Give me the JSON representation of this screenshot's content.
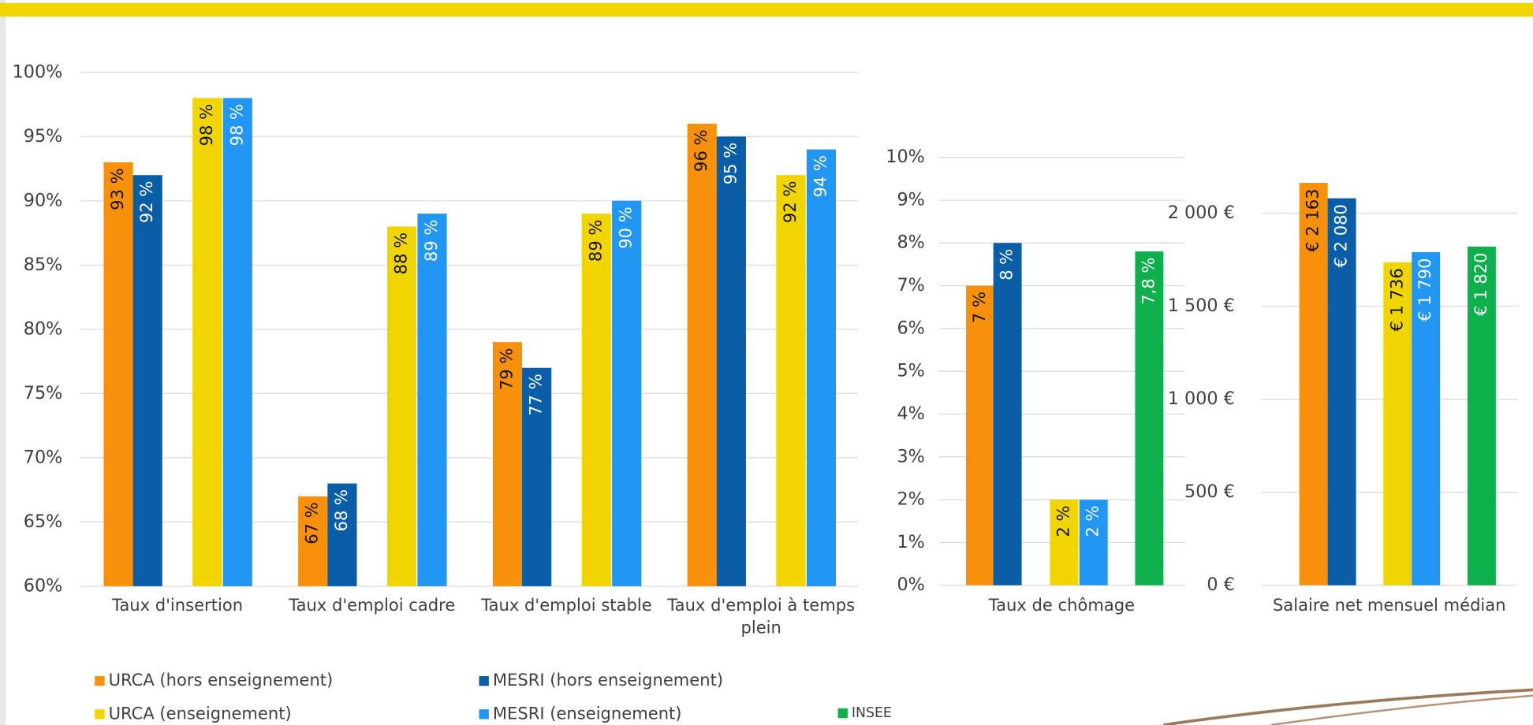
{
  "chart_data": [
    {
      "type": "bar",
      "categories": [
        "Taux d'insertion",
        "Taux d'emploi cadre",
        "Taux d'emploi stable",
        "Taux d'emploi à temps plein"
      ],
      "series": [
        {
          "name": "URCA (hors enseignement)",
          "color": "#f7900a",
          "values": [
            93,
            67,
            79,
            96
          ],
          "value_labels": [
            "93 %",
            "67 %",
            "79 %",
            "96 %"
          ]
        },
        {
          "name": "MESRI (hors enseignement)",
          "color": "#0a5ea8",
          "values": [
            92,
            68,
            77,
            95
          ],
          "value_labels": [
            "92 %",
            "68 %",
            "77 %",
            "95 %"
          ]
        },
        {
          "name": "URCA (enseignement)",
          "color": "#f0d500",
          "values": [
            98,
            88,
            89,
            92
          ],
          "value_labels": [
            "98 %",
            "88 %",
            "89 %",
            "92 %"
          ]
        },
        {
          "name": "MESRI (enseignement)",
          "color": "#2196f3",
          "values": [
            98,
            89,
            90,
            94
          ],
          "value_labels": [
            "98 %",
            "89 %",
            "90 %",
            "94 %"
          ]
        }
      ],
      "ylim": [
        60,
        100
      ],
      "yticks": [
        {
          "value": 60,
          "label": "60%"
        },
        {
          "value": 65,
          "label": "65%"
        },
        {
          "value": 70,
          "label": "70%"
        },
        {
          "value": 75,
          "label": "75%"
        },
        {
          "value": 80,
          "label": "80%"
        },
        {
          "value": 85,
          "label": "85%"
        },
        {
          "value": 90,
          "label": "90%"
        },
        {
          "value": 95,
          "label": "95%"
        },
        {
          "value": 100,
          "label": "100%"
        }
      ],
      "grid": true
    },
    {
      "type": "bar",
      "categories": [
        "Taux de chômage"
      ],
      "series": [
        {
          "color": "#f7900a",
          "values": [
            7
          ],
          "value_labels": [
            "7 %"
          ]
        },
        {
          "color": "#0a5ea8",
          "values": [
            8
          ],
          "value_labels": [
            "8 %"
          ]
        },
        {
          "color": "#f0d500",
          "values": [
            2
          ],
          "value_labels": [
            "2 %"
          ]
        },
        {
          "color": "#2196f3",
          "values": [
            2
          ],
          "value_labels": [
            "2 %"
          ]
        },
        {
          "name": "INSEE",
          "color": "#0db04b",
          "values": [
            7.8
          ],
          "value_labels": [
            "7,8 %"
          ]
        }
      ],
      "ylim": [
        0,
        10
      ],
      "yticks": [
        {
          "value": 0,
          "label": "0%"
        },
        {
          "value": 1,
          "label": "1%"
        },
        {
          "value": 2,
          "label": "2%"
        },
        {
          "value": 3,
          "label": "3%"
        },
        {
          "value": 4,
          "label": "4%"
        },
        {
          "value": 5,
          "label": "5%"
        },
        {
          "value": 6,
          "label": "6%"
        },
        {
          "value": 7,
          "label": "7%"
        },
        {
          "value": 8,
          "label": "8%"
        },
        {
          "value": 9,
          "label": "9%"
        },
        {
          "value": 10,
          "label": "10%"
        }
      ],
      "grid": true
    },
    {
      "type": "bar",
      "categories": [
        "Salaire net mensuel médian"
      ],
      "series": [
        {
          "color": "#f7900a",
          "values": [
            2163
          ],
          "value_labels": [
            "€ 2 163"
          ]
        },
        {
          "color": "#0a5ea8",
          "values": [
            2080
          ],
          "value_labels": [
            "€ 2 080"
          ]
        },
        {
          "color": "#f0d500",
          "values": [
            1736
          ],
          "value_labels": [
            "€ 1 736"
          ]
        },
        {
          "color": "#2196f3",
          "values": [
            1790
          ],
          "value_labels": [
            "€ 1 790"
          ]
        },
        {
          "color": "#0db04b",
          "values": [
            1820
          ],
          "value_labels": [
            "€ 1 820"
          ]
        }
      ],
      "ylim": [
        0,
        2300
      ],
      "yticks": [
        {
          "value": 0,
          "label": "0 €"
        },
        {
          "value": 500,
          "label": "500 €"
        },
        {
          "value": 1000,
          "label": "1 000 €"
        },
        {
          "value": 1500,
          "label": "1 500 €"
        },
        {
          "value": 2000,
          "label": "2 000 €"
        }
      ],
      "grid": true
    }
  ]
}
